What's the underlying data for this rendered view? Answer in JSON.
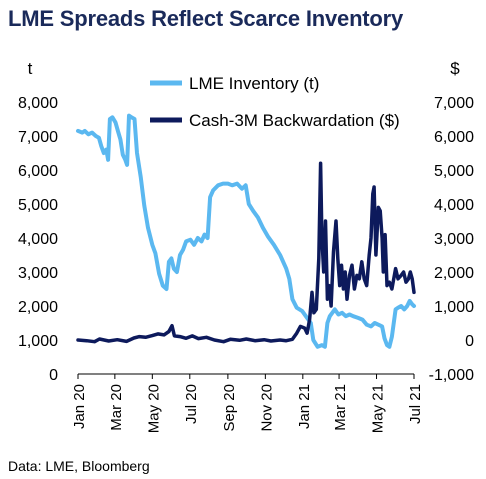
{
  "title": "LME Spreads Reflect Scarce Inventory",
  "source": "Data: LME, Bloomberg",
  "colors": {
    "inventory": "#5bb8f0",
    "backwardation": "#0d1a5c",
    "title": "#1a2a5a",
    "axis": "#000000"
  },
  "chart_data": {
    "type": "line",
    "left_axis": {
      "unit_label": "t",
      "ylim": [
        0,
        8000
      ],
      "ticks": [
        0,
        1000,
        2000,
        3000,
        4000,
        5000,
        6000,
        7000,
        8000
      ],
      "tick_labels": [
        "0",
        "1,000",
        "2,000",
        "3,000",
        "4,000",
        "5,000",
        "6,000",
        "7,000",
        "8,000"
      ]
    },
    "right_axis": {
      "unit_label": "$",
      "ylim": [
        -1000,
        7000
      ],
      "ticks": [
        -1000,
        0,
        1000,
        2000,
        3000,
        4000,
        5000,
        6000,
        7000
      ],
      "tick_labels": [
        "-1,000",
        "0",
        "1,000",
        "2,000",
        "3,000",
        "4,000",
        "5,000",
        "6,000",
        "7,000"
      ]
    },
    "x_axis": {
      "xlim": [
        "2020-01-01",
        "2021-07-01"
      ],
      "ticks": [
        "2020-01-01",
        "2020-03-01",
        "2020-05-01",
        "2020-07-01",
        "2020-09-01",
        "2020-11-01",
        "2021-01-01",
        "2021-03-01",
        "2021-05-01",
        "2021-07-01"
      ],
      "tick_labels": [
        "Jan 20",
        "Mar 20",
        "May 20",
        "Jul 20",
        "Sep 20",
        "Nov 20",
        "Jan 21",
        "Mar 21",
        "May 21",
        "Jul 21"
      ]
    },
    "legend_placement": "top-center",
    "series": [
      {
        "name": "LME Inventory (t)",
        "axis": "left",
        "points": [
          [
            "2020-01-01",
            7150
          ],
          [
            "2020-01-08",
            7100
          ],
          [
            "2020-01-12",
            7150
          ],
          [
            "2020-01-18",
            7050
          ],
          [
            "2020-01-24",
            7100
          ],
          [
            "2020-01-30",
            7000
          ],
          [
            "2020-02-04",
            6950
          ],
          [
            "2020-02-08",
            6700
          ],
          [
            "2020-02-12",
            6500
          ],
          [
            "2020-02-16",
            6600
          ],
          [
            "2020-02-19",
            6300
          ],
          [
            "2020-02-22",
            7500
          ],
          [
            "2020-02-26",
            7550
          ],
          [
            "2020-03-02",
            7400
          ],
          [
            "2020-03-06",
            7150
          ],
          [
            "2020-03-10",
            6900
          ],
          [
            "2020-03-14",
            6450
          ],
          [
            "2020-03-18",
            6300
          ],
          [
            "2020-03-21",
            6150
          ],
          [
            "2020-03-24",
            7600
          ],
          [
            "2020-03-28",
            7550
          ],
          [
            "2020-04-02",
            7500
          ],
          [
            "2020-04-06",
            6500
          ],
          [
            "2020-04-12",
            5800
          ],
          [
            "2020-04-18",
            4950
          ],
          [
            "2020-04-24",
            4300
          ],
          [
            "2020-05-01",
            3800
          ],
          [
            "2020-05-06",
            3550
          ],
          [
            "2020-05-12",
            2950
          ],
          [
            "2020-05-18",
            2600
          ],
          [
            "2020-05-24",
            2500
          ],
          [
            "2020-05-28",
            3300
          ],
          [
            "2020-06-01",
            3400
          ],
          [
            "2020-06-05",
            3100
          ],
          [
            "2020-06-10",
            3000
          ],
          [
            "2020-06-15",
            3500
          ],
          [
            "2020-06-20",
            3650
          ],
          [
            "2020-06-25",
            3900
          ],
          [
            "2020-07-02",
            3950
          ],
          [
            "2020-07-08",
            3800
          ],
          [
            "2020-07-14",
            4000
          ],
          [
            "2020-07-20",
            3900
          ],
          [
            "2020-07-25",
            4100
          ],
          [
            "2020-07-30",
            4000
          ],
          [
            "2020-08-03",
            5200
          ],
          [
            "2020-08-08",
            5400
          ],
          [
            "2020-08-16",
            5550
          ],
          [
            "2020-08-24",
            5600
          ],
          [
            "2020-09-01",
            5600
          ],
          [
            "2020-09-08",
            5550
          ],
          [
            "2020-09-16",
            5600
          ],
          [
            "2020-09-24",
            5450
          ],
          [
            "2020-09-30",
            5550
          ],
          [
            "2020-10-05",
            5000
          ],
          [
            "2020-10-12",
            4800
          ],
          [
            "2020-10-20",
            4600
          ],
          [
            "2020-10-28",
            4300
          ],
          [
            "2020-11-05",
            4050
          ],
          [
            "2020-11-15",
            3800
          ],
          [
            "2020-11-25",
            3500
          ],
          [
            "2020-12-05",
            3100
          ],
          [
            "2020-12-10",
            2800
          ],
          [
            "2020-12-15",
            2200
          ],
          [
            "2020-12-22",
            1950
          ],
          [
            "2020-12-31",
            1850
          ],
          [
            "2021-01-08",
            1650
          ],
          [
            "2021-01-14",
            1500
          ],
          [
            "2021-01-18",
            1000
          ],
          [
            "2021-01-25",
            800
          ],
          [
            "2021-02-01",
            850
          ],
          [
            "2021-02-06",
            800
          ],
          [
            "2021-02-10",
            1500
          ],
          [
            "2021-02-14",
            1700
          ],
          [
            "2021-02-18",
            1800
          ],
          [
            "2021-02-22",
            1900
          ],
          [
            "2021-02-28",
            1750
          ],
          [
            "2021-03-06",
            1800
          ],
          [
            "2021-03-12",
            1700
          ],
          [
            "2021-03-18",
            1750
          ],
          [
            "2021-03-24",
            1700
          ],
          [
            "2021-04-01",
            1650
          ],
          [
            "2021-04-08",
            1600
          ],
          [
            "2021-04-15",
            1450
          ],
          [
            "2021-04-22",
            1400
          ],
          [
            "2021-04-28",
            1500
          ],
          [
            "2021-05-04",
            1450
          ],
          [
            "2021-05-10",
            1400
          ],
          [
            "2021-05-14",
            1050
          ],
          [
            "2021-05-18",
            850
          ],
          [
            "2021-05-22",
            800
          ],
          [
            "2021-05-26",
            1100
          ],
          [
            "2021-06-01",
            1900
          ],
          [
            "2021-06-05",
            1950
          ],
          [
            "2021-06-10",
            2000
          ],
          [
            "2021-06-15",
            1900
          ],
          [
            "2021-06-20",
            2000
          ],
          [
            "2021-06-24",
            2150
          ],
          [
            "2021-06-28",
            2050
          ],
          [
            "2021-07-01",
            2000
          ]
        ]
      },
      {
        "name": "Cash-3M Backwardation ($)",
        "axis": "right",
        "points": [
          [
            "2020-01-01",
            0
          ],
          [
            "2020-01-15",
            -20
          ],
          [
            "2020-01-28",
            -50
          ],
          [
            "2020-02-05",
            30
          ],
          [
            "2020-02-20",
            -30
          ],
          [
            "2020-03-05",
            10
          ],
          [
            "2020-03-20",
            -40
          ],
          [
            "2020-04-01",
            60
          ],
          [
            "2020-04-10",
            100
          ],
          [
            "2020-04-20",
            80
          ],
          [
            "2020-05-01",
            130
          ],
          [
            "2020-05-10",
            180
          ],
          [
            "2020-05-20",
            150
          ],
          [
            "2020-05-28",
            250
          ],
          [
            "2020-06-02",
            420
          ],
          [
            "2020-06-06",
            120
          ],
          [
            "2020-06-15",
            100
          ],
          [
            "2020-06-25",
            50
          ],
          [
            "2020-07-05",
            120
          ],
          [
            "2020-07-15",
            40
          ],
          [
            "2020-07-28",
            80
          ],
          [
            "2020-08-10",
            0
          ],
          [
            "2020-08-25",
            -50
          ],
          [
            "2020-09-05",
            20
          ],
          [
            "2020-09-20",
            -10
          ],
          [
            "2020-10-01",
            30
          ],
          [
            "2020-10-15",
            -20
          ],
          [
            "2020-10-30",
            10
          ],
          [
            "2020-11-10",
            -30
          ],
          [
            "2020-11-25",
            0
          ],
          [
            "2020-12-05",
            -20
          ],
          [
            "2020-12-15",
            20
          ],
          [
            "2020-12-22",
            200
          ],
          [
            "2020-12-28",
            400
          ],
          [
            "2021-01-04",
            350
          ],
          [
            "2021-01-08",
            200
          ],
          [
            "2021-01-12",
            600
          ],
          [
            "2021-01-16",
            1400
          ],
          [
            "2021-01-19",
            800
          ],
          [
            "2021-01-23",
            900
          ],
          [
            "2021-01-27",
            2400
          ],
          [
            "2021-01-30",
            5200
          ],
          [
            "2021-02-01",
            3000
          ],
          [
            "2021-02-04",
            2000
          ],
          [
            "2021-02-07",
            3500
          ],
          [
            "2021-02-10",
            1200
          ],
          [
            "2021-02-13",
            1600
          ],
          [
            "2021-02-16",
            1000
          ],
          [
            "2021-02-20",
            2600
          ],
          [
            "2021-02-24",
            3500
          ],
          [
            "2021-02-27",
            2400
          ],
          [
            "2021-03-02",
            1600
          ],
          [
            "2021-03-05",
            2200
          ],
          [
            "2021-03-08",
            1500
          ],
          [
            "2021-03-11",
            2000
          ],
          [
            "2021-03-14",
            1200
          ],
          [
            "2021-03-18",
            1900
          ],
          [
            "2021-03-22",
            2200
          ],
          [
            "2021-03-26",
            1500
          ],
          [
            "2021-03-30",
            1900
          ],
          [
            "2021-04-03",
            1800
          ],
          [
            "2021-04-07",
            2300
          ],
          [
            "2021-04-11",
            1800
          ],
          [
            "2021-04-15",
            1600
          ],
          [
            "2021-04-19",
            2500
          ],
          [
            "2021-04-22",
            3000
          ],
          [
            "2021-04-25",
            4300
          ],
          [
            "2021-04-27",
            4500
          ],
          [
            "2021-04-30",
            2500
          ],
          [
            "2021-05-04",
            3900
          ],
          [
            "2021-05-07",
            3800
          ],
          [
            "2021-05-10",
            3000
          ],
          [
            "2021-05-12",
            2000
          ],
          [
            "2021-05-15",
            3100
          ],
          [
            "2021-05-18",
            1600
          ],
          [
            "2021-05-22",
            1700
          ],
          [
            "2021-05-26",
            1500
          ],
          [
            "2021-06-01",
            2100
          ],
          [
            "2021-06-05",
            1800
          ],
          [
            "2021-06-10",
            1900
          ],
          [
            "2021-06-14",
            2000
          ],
          [
            "2021-06-18",
            1700
          ],
          [
            "2021-06-22",
            1800
          ],
          [
            "2021-06-25",
            2000
          ],
          [
            "2021-06-28",
            1800
          ],
          [
            "2021-07-01",
            1400
          ]
        ]
      }
    ]
  }
}
